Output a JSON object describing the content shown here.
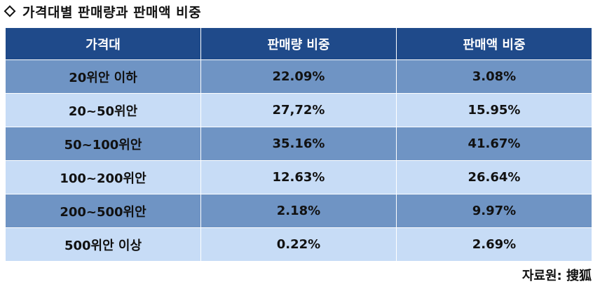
{
  "title": "가격대별 판매량과 판매액 비중",
  "table": {
    "headers": [
      "가격대",
      "판매량 비중",
      "판매액 비중"
    ],
    "rows": [
      [
        "20위안 이하",
        "22.09%",
        "3.08%"
      ],
      [
        "20~50위안",
        "27,72%",
        "15.95%"
      ],
      [
        "50~100위안",
        "35.16%",
        "41.67%"
      ],
      [
        "100~200위안",
        "12.63%",
        "26.64%"
      ],
      [
        "200~500위안",
        "2.18%",
        "9.97%"
      ],
      [
        "500위안 이상",
        "0.22%",
        "2.69%"
      ]
    ]
  },
  "source": "자료원: 搜狐",
  "colors": {
    "header_bg": "#1f4a8a",
    "row_dark": "#6f94c4",
    "row_light": "#c7dcf6"
  }
}
